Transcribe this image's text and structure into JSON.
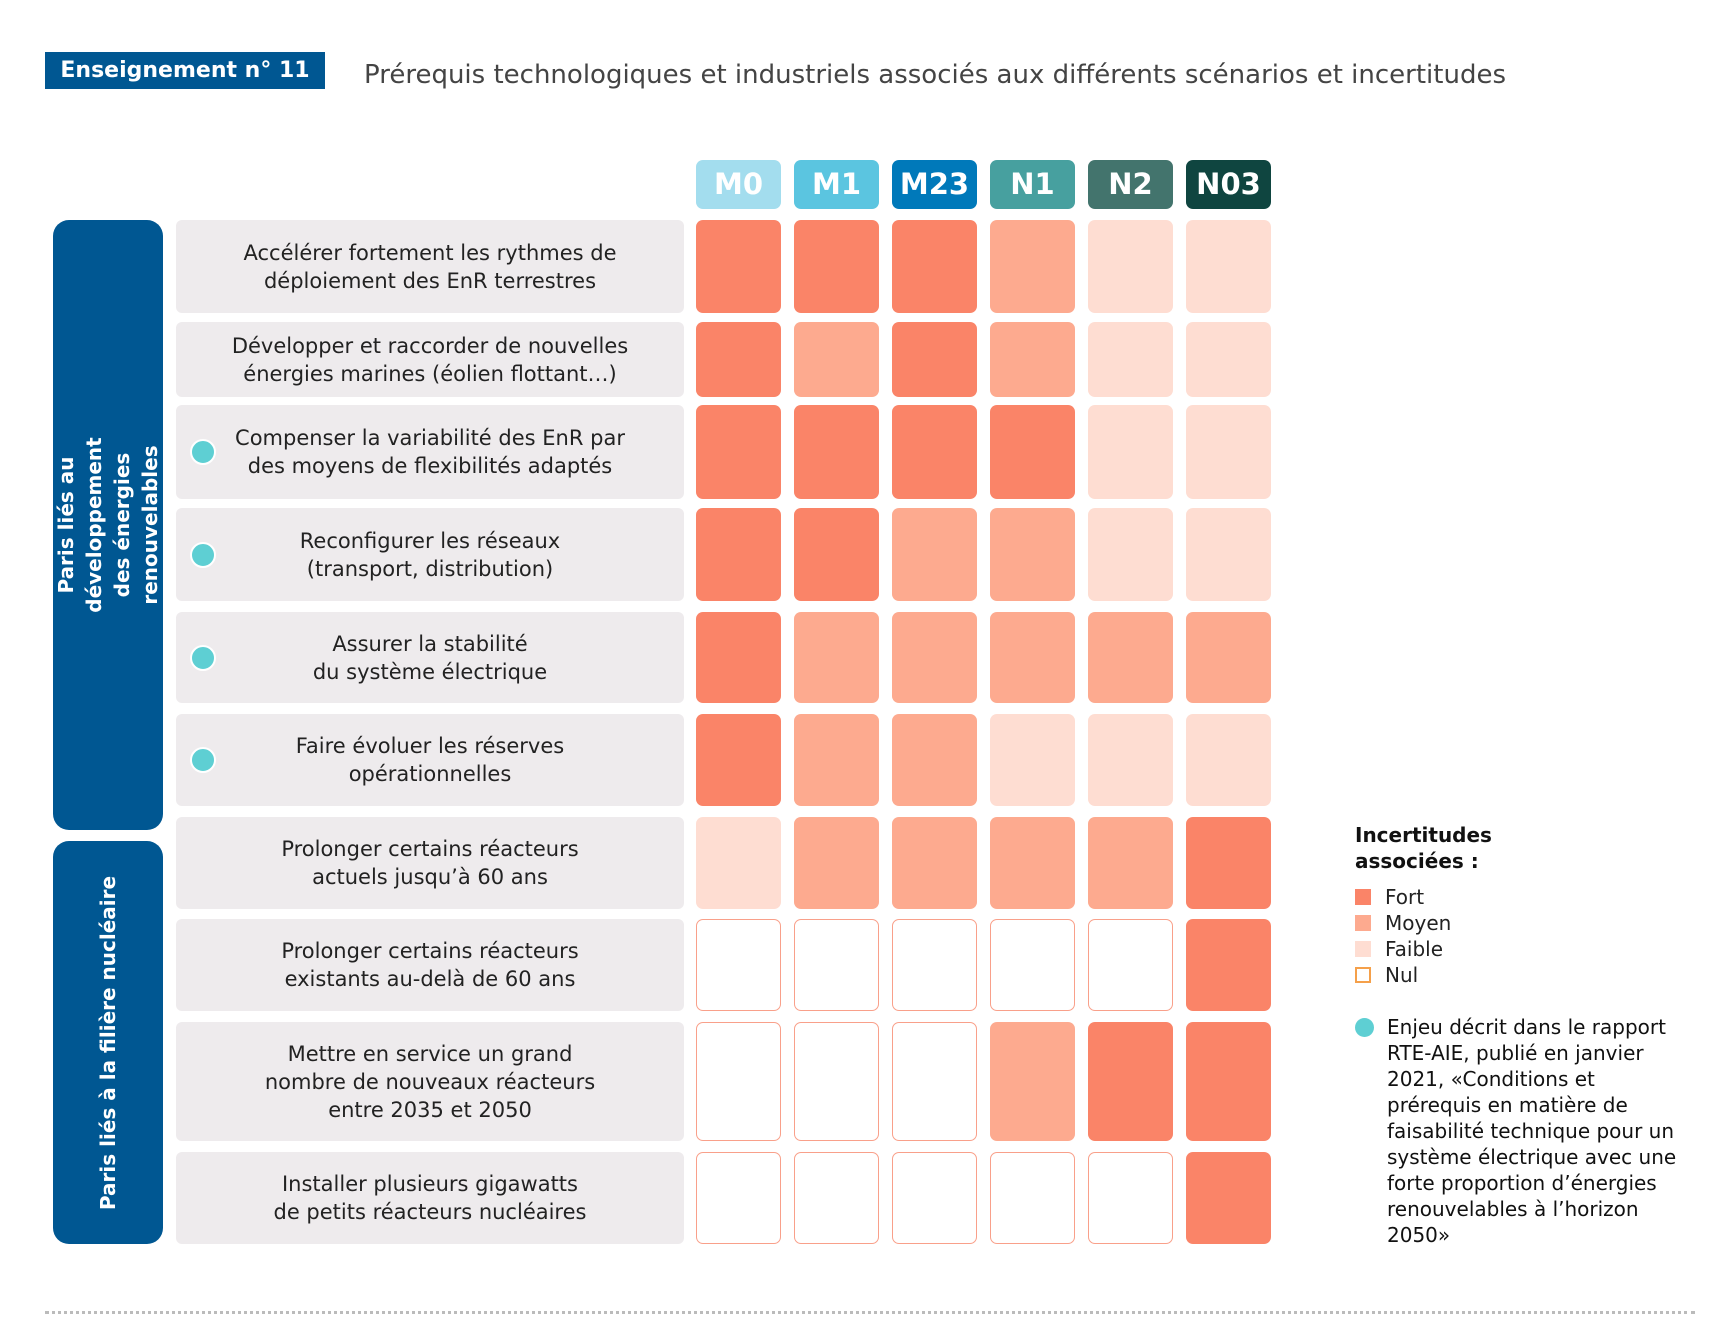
{
  "header": {
    "badge": "Enseignement n° 11",
    "title": "Prérequis technologiques et industriels associés aux différents scénarios et incertitudes"
  },
  "colors": {
    "Fort": "#FA8468",
    "Moyen": "#FDAA8F",
    "Faible": "#FEDDD2",
    "Nul": "#FFFFFF",
    "nul_border": "#F9A08A",
    "group": "#005792",
    "dot": "#5ECFD3"
  },
  "scenarios": [
    {
      "label": "M0",
      "color": "#A3DDEE"
    },
    {
      "label": "M1",
      "color": "#5BC5E0"
    },
    {
      "label": "M23",
      "color": "#0079BA"
    },
    {
      "label": "N1",
      "color": "#47A09F"
    },
    {
      "label": "N2",
      "color": "#43746D"
    },
    {
      "label": "N03",
      "color": "#0F4540"
    }
  ],
  "groups": [
    {
      "label": "Paris liés au développement des énergies\nrenouvelables"
    },
    {
      "label": "Paris liés à la filière nucléaire"
    }
  ],
  "rows": [
    {
      "label": "Accélérer fortement les rythmes de\ndéploiement des EnR terrestres",
      "dot": false,
      "levels": [
        "Fort",
        "Fort",
        "Fort",
        "Moyen",
        "Faible",
        "Faible"
      ]
    },
    {
      "label": "Développer et raccorder de nouvelles\nénergies marines (éolien flottant…)",
      "dot": false,
      "levels": [
        "Fort",
        "Moyen",
        "Fort",
        "Moyen",
        "Faible",
        "Faible"
      ]
    },
    {
      "label": "Compenser la variabilité des EnR par\ndes moyens de flexibilités adaptés",
      "dot": true,
      "levels": [
        "Fort",
        "Fort",
        "Fort",
        "Fort",
        "Faible",
        "Faible"
      ]
    },
    {
      "label": "Reconfigurer les réseaux\n(transport, distribution)",
      "dot": true,
      "levels": [
        "Fort",
        "Fort",
        "Moyen",
        "Moyen",
        "Faible",
        "Faible"
      ]
    },
    {
      "label": "Assurer la stabilité\ndu système électrique",
      "dot": true,
      "levels": [
        "Fort",
        "Moyen",
        "Moyen",
        "Moyen",
        "Moyen",
        "Moyen"
      ]
    },
    {
      "label": "Faire évoluer les réserves\nopérationnelles",
      "dot": true,
      "levels": [
        "Fort",
        "Moyen",
        "Moyen",
        "Faible",
        "Faible",
        "Faible"
      ]
    },
    {
      "label": "Prolonger certains réacteurs\nactuels jusqu’à 60 ans",
      "dot": false,
      "levels": [
        "Faible",
        "Moyen",
        "Moyen",
        "Moyen",
        "Moyen",
        "Fort"
      ]
    },
    {
      "label": "Prolonger certains réacteurs\nexistants au-delà de 60 ans",
      "dot": false,
      "levels": [
        "Nul",
        "Nul",
        "Nul",
        "Nul",
        "Nul",
        "Fort"
      ]
    },
    {
      "label": "Mettre en service un grand\nnombre de nouveaux réacteurs\nentre 2035 et 2050",
      "dot": false,
      "levels": [
        "Nul",
        "Nul",
        "Nul",
        "Moyen",
        "Fort",
        "Fort"
      ]
    },
    {
      "label": "Installer plusieurs gigawatts\nde petits réacteurs nucléaires",
      "dot": false,
      "levels": [
        "Nul",
        "Nul",
        "Nul",
        "Nul",
        "Nul",
        "Fort"
      ]
    }
  ],
  "legend": {
    "title": "Incertitudes\nassociées :",
    "items": [
      "Fort",
      "Moyen",
      "Faible",
      "Nul"
    ],
    "note": "Enjeu décrit dans le rapport RTE-AIE, publié en janvier 2021, «Conditions et prérequis en matière de faisabilité technique pour un système électrique avec une forte proportion d’énergies renouvelables à l’horizon 2050»"
  }
}
